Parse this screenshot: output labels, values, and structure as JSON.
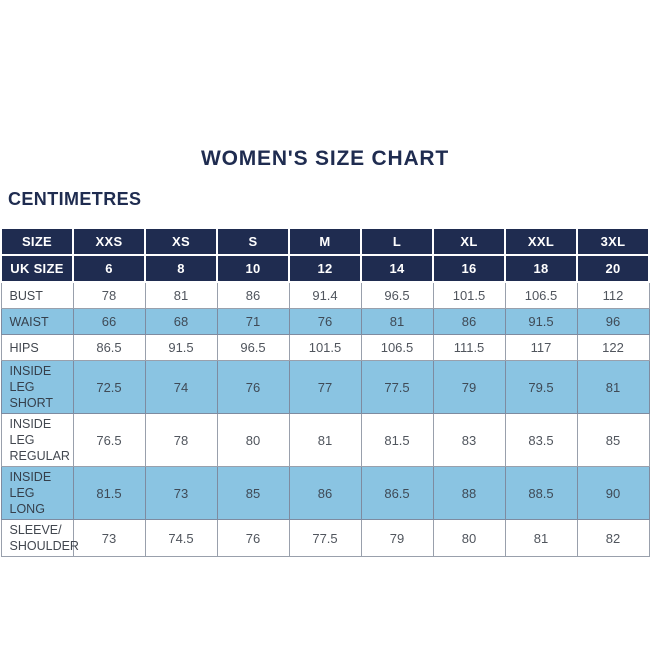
{
  "page": {
    "title": "WOMEN'S SIZE CHART",
    "unit_label": "CENTIMETRES"
  },
  "colors": {
    "navy": "#1F2C50",
    "light_blue": "#8AC4E2",
    "header_text": "#FFFFFF",
    "cell_text": "#50555D",
    "body_border": "#99A0AC"
  },
  "chart_data": {
    "type": "table",
    "title": "WOMEN'S SIZE CHART",
    "unit": "CENTIMETRES",
    "columns": [
      "SIZE",
      "XXS",
      "XS",
      "S",
      "M",
      "L",
      "XL",
      "XXL",
      "3XL"
    ],
    "rows": [
      {
        "label": "UK SIZE",
        "header": true,
        "values": [
          "6",
          "8",
          "10",
          "12",
          "14",
          "16",
          "18",
          "20"
        ]
      },
      {
        "label": "BUST",
        "header": false,
        "values": [
          "78",
          "81",
          "86",
          "91.4",
          "96.5",
          "101.5",
          "106.5",
          "112"
        ]
      },
      {
        "label": "WAIST",
        "header": false,
        "values": [
          "66",
          "68",
          "71",
          "76",
          "81",
          "86",
          "91.5",
          "96"
        ]
      },
      {
        "label": "HIPS",
        "header": false,
        "values": [
          "86.5",
          "91.5",
          "96.5",
          "101.5",
          "106.5",
          "111.5",
          "117",
          "122"
        ]
      },
      {
        "label": "INSIDE LEG\nSHORT",
        "header": false,
        "values": [
          "72.5",
          "74",
          "76",
          "77",
          "77.5",
          "79",
          "79.5",
          "81"
        ]
      },
      {
        "label": "INSIDE LEG\nREGULAR",
        "header": false,
        "values": [
          "76.5",
          "78",
          "80",
          "81",
          "81.5",
          "83",
          "83.5",
          "85"
        ]
      },
      {
        "label": "INSIDE LEG\nLONG",
        "header": false,
        "values": [
          "81.5",
          "73",
          "85",
          "86",
          "86.5",
          "88",
          "88.5",
          "90"
        ]
      },
      {
        "label": "SLEEVE/\nSHOULDER",
        "header": false,
        "values": [
          "73",
          "74.5",
          "76",
          "77.5",
          "79",
          "80",
          "81",
          "82"
        ]
      }
    ]
  }
}
